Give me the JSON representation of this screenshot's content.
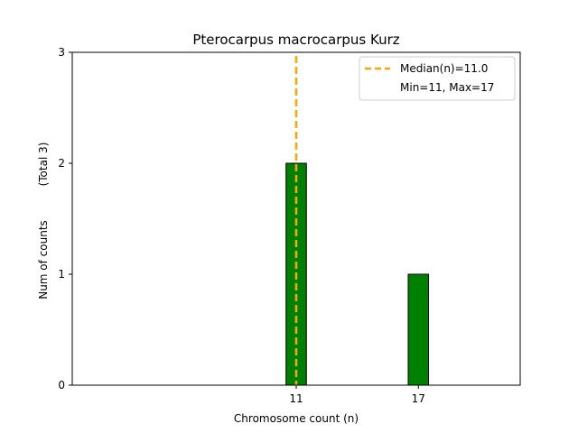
{
  "chart_data": {
    "type": "bar",
    "title": "Pterocarpus macrocarpus Kurz",
    "xlabel": "Chromosome count (n)",
    "ylabel": "Num of counts",
    "ylabel_extra": "(Total 3)",
    "categories": [
      "11",
      "17"
    ],
    "x": [
      11,
      17
    ],
    "values": [
      2,
      1
    ],
    "xlim": [
      0,
      22
    ],
    "ylim": [
      0,
      3
    ],
    "yticks": [
      0,
      1,
      2,
      3
    ],
    "xticks": [
      11,
      17
    ],
    "bar_width": 1,
    "bar_color": "#008000",
    "bar_edge_color": "#000000",
    "baseline_x_end": 20,
    "median": {
      "value": 11.0,
      "label": "Median(n)=11.0",
      "color": "#ffa500"
    },
    "legend": {
      "placement": "top-right",
      "entries": [
        "Median(n)=11.0",
        "Min=11, Max=17"
      ]
    },
    "grid": false
  }
}
